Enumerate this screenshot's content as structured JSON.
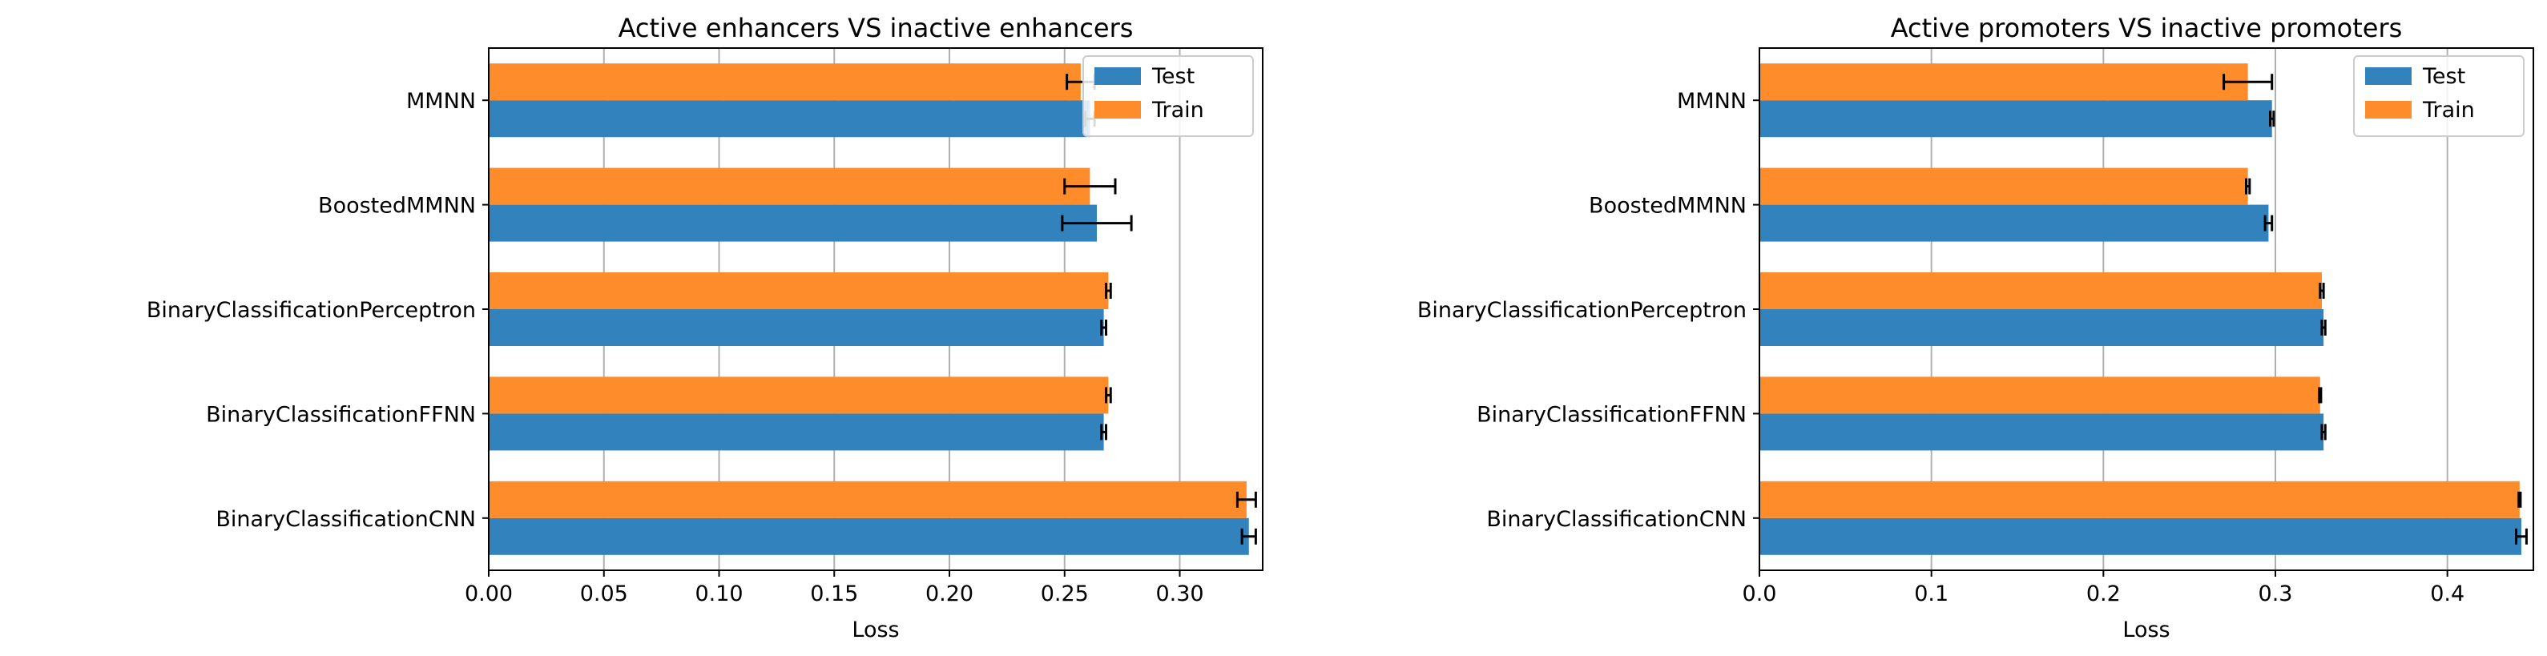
{
  "colors": {
    "test": "#3182bd",
    "train": "#ff8c2a",
    "grid": "#b0b0b0",
    "errorbar": "#000000"
  },
  "chart_data": [
    {
      "type": "bar",
      "orientation": "horizontal",
      "title": "Active enhancers VS inactive enhancers",
      "xlabel": "Loss",
      "ylabel": "",
      "xlim": [
        0,
        0.336
      ],
      "xticks": [
        "0.00",
        "0.05",
        "0.10",
        "0.15",
        "0.20",
        "0.25",
        "0.30"
      ],
      "xtick_values": [
        0,
        0.05,
        0.1,
        0.15,
        0.2,
        0.25,
        0.3
      ],
      "grid": "vertical",
      "legend_position": "top-right",
      "categories": [
        "MMNN",
        "BoostedMMNN",
        "BinaryClassificationPerceptron",
        "BinaryClassificationFFNN",
        "BinaryClassificationCNN"
      ],
      "series": [
        {
          "name": "Test",
          "values": [
            0.261,
            0.264,
            0.267,
            0.267,
            0.33
          ],
          "errors": [
            0.002,
            0.015,
            0.001,
            0.001,
            0.003
          ]
        },
        {
          "name": "Train",
          "values": [
            0.257,
            0.261,
            0.269,
            0.269,
            0.329
          ],
          "errors": [
            0.006,
            0.011,
            0.001,
            0.001,
            0.004
          ]
        }
      ]
    },
    {
      "type": "bar",
      "orientation": "horizontal",
      "title": "Active promoters VS inactive promoters",
      "xlabel": "Loss",
      "ylabel": "",
      "xlim": [
        0,
        0.45
      ],
      "xticks": [
        "0.0",
        "0.1",
        "0.2",
        "0.3",
        "0.4"
      ],
      "xtick_values": [
        0,
        0.1,
        0.2,
        0.3,
        0.4
      ],
      "grid": "vertical",
      "legend_position": "top-right",
      "categories": [
        "MMNN",
        "BoostedMMNN",
        "BinaryClassificationPerceptron",
        "BinaryClassificationFFNN",
        "BinaryClassificationCNN"
      ],
      "series": [
        {
          "name": "Test",
          "values": [
            0.298,
            0.296,
            0.328,
            0.328,
            0.443
          ],
          "errors": [
            0.001,
            0.002,
            0.001,
            0.001,
            0.003
          ]
        },
        {
          "name": "Train",
          "values": [
            0.284,
            0.284,
            0.327,
            0.326,
            0.442
          ],
          "errors": [
            0.014,
            0.001,
            0.001,
            0.0005,
            0.0005
          ]
        }
      ]
    }
  ]
}
